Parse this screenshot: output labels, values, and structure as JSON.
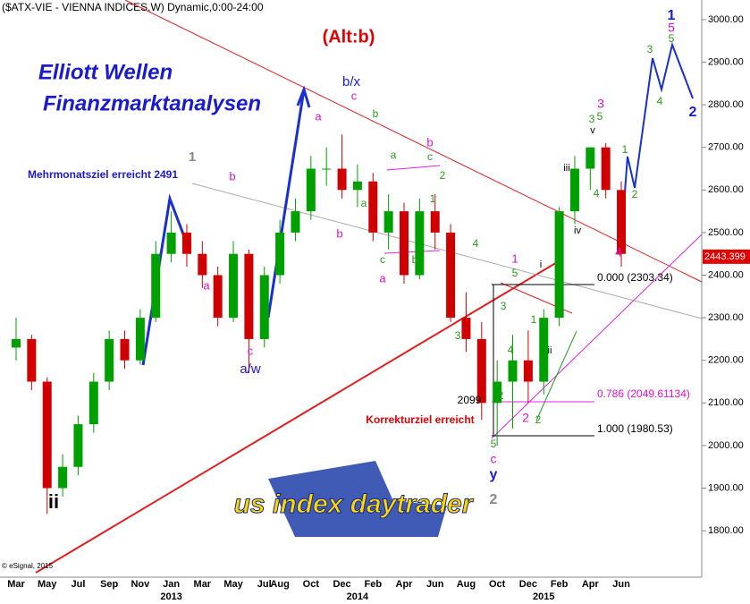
{
  "chart_data": {
    "type": "candlestick",
    "title": "($ATX-VIE - VIENNA INDICES,W) Dynamic,0:00-24:00",
    "categories": [
      "Mar",
      null,
      "May",
      null,
      "Jul",
      null,
      "Sep",
      null,
      "Nov",
      null,
      "Jan",
      null,
      "Mar",
      null,
      "May",
      null,
      "Jul",
      "Aug",
      null,
      "Oct",
      null,
      "Dec",
      null,
      "Feb",
      null,
      "Apr",
      null,
      "Jun",
      null,
      "Aug",
      null,
      "Oct",
      null,
      "Dec",
      null,
      "Feb",
      null,
      "Apr",
      null,
      "Jun",
      null,
      null,
      null,
      null
    ],
    "years": [
      null,
      null,
      null,
      null,
      null,
      null,
      null,
      null,
      null,
      null,
      "2013",
      null,
      null,
      null,
      null,
      null,
      null,
      null,
      null,
      null,
      null,
      null,
      "2014",
      null,
      null,
      null,
      null,
      null,
      null,
      null,
      null,
      null,
      null,
      null,
      "2015",
      null,
      null,
      null,
      null,
      null,
      null,
      null,
      null,
      null
    ],
    "open": [
      2230,
      2250,
      2150,
      1900,
      1950,
      2050,
      2150,
      2250,
      2200,
      2300,
      2450,
      2500,
      2450,
      2400,
      2300,
      2450,
      2250,
      2400,
      2500,
      2550,
      2650,
      2650,
      2600,
      2620,
      2500,
      2550,
      2400,
      2550,
      2500,
      2300,
      2250,
      2100,
      2150,
      2200,
      2150,
      2300,
      2550,
      2650,
      2700,
      2600,
      null,
      null,
      null,
      null
    ],
    "high": [
      2300,
      2260,
      2160,
      1980,
      2070,
      2170,
      2270,
      2270,
      2320,
      2480,
      2550,
      2520,
      2480,
      2420,
      2480,
      2460,
      2420,
      2530,
      2580,
      2680,
      2700,
      2730,
      2660,
      2640,
      2590,
      2570,
      2580,
      2590,
      2520,
      2360,
      2290,
      2200,
      2260,
      2270,
      2320,
      2560,
      2680,
      2700,
      2710,
      2620,
      null,
      null,
      null,
      null
    ],
    "low": [
      2200,
      2130,
      1840,
      1880,
      1930,
      2030,
      2130,
      2180,
      2190,
      2290,
      2430,
      2420,
      2370,
      2280,
      2290,
      2170,
      2230,
      2380,
      2480,
      2530,
      2610,
      2580,
      2560,
      2480,
      2460,
      2380,
      2390,
      2460,
      2290,
      2220,
      2060,
      2000,
      2040,
      2100,
      2120,
      2280,
      2520,
      2600,
      2580,
      2420,
      null,
      null,
      null,
      null
    ],
    "close": [
      2250,
      2150,
      1900,
      1950,
      2050,
      2150,
      2250,
      2200,
      2300,
      2450,
      2500,
      2450,
      2400,
      2300,
      2450,
      2250,
      2400,
      2500,
      2550,
      2650,
      2650,
      2600,
      2620,
      2500,
      2550,
      2400,
      2550,
      2500,
      2300,
      2250,
      2100,
      2150,
      2200,
      2150,
      2300,
      2550,
      2650,
      2700,
      2600,
      2450,
      null,
      null,
      null,
      null
    ],
    "up_color": "#00a000",
    "down_color": "#d00000",
    "ylim": [
      1691,
      3046
    ],
    "yticks": [
      {
        "value": 1800,
        "label": "1800.00"
      },
      {
        "value": 1900,
        "label": "1900.00"
      },
      {
        "value": 2000,
        "label": "2000.00"
      },
      {
        "value": 2100,
        "label": "2100.00"
      },
      {
        "value": 2200,
        "label": "2200.00"
      },
      {
        "value": 2300,
        "label": "2300.00"
      },
      {
        "value": 2400,
        "label": "2400.00"
      },
      {
        "value": 2500,
        "label": "2500.00"
      },
      {
        "value": 2600,
        "label": "2600.00"
      },
      {
        "value": 2700,
        "label": "2700.00"
      },
      {
        "value": 2800,
        "label": "2800.00"
      },
      {
        "value": 2900,
        "label": "2900.00"
      },
      {
        "value": 3000,
        "label": "3000.00"
      }
    ],
    "last_price": 2443.399,
    "logo": "us index daytrader",
    "annotations": [
      "(Alt:b)",
      "Elliott Wellen",
      "Finanzmarktanalysen",
      "Mehrmonatsziel erreicht 2491",
      "Korrekturziel erreicht",
      "2099",
      "0.000 (2303.34)",
      "0.786 (2049.61134)",
      "1.000 (1980.53)",
      "© eSignal, 2015",
      "1",
      "b",
      "a",
      "c",
      "a/w",
      "b/x",
      "c",
      "a",
      "b",
      "a",
      "b",
      "b",
      "c",
      "a",
      "2",
      "1",
      "c",
      "b",
      "a",
      "4",
      "3",
      "1",
      "5",
      "3",
      "4",
      "1",
      "2",
      "2",
      "2",
      "5",
      "c",
      "y",
      "2",
      "ii",
      "i",
      "iii",
      "iv",
      "v",
      "3",
      "5",
      "3",
      "4",
      "4",
      "1",
      "2",
      "3",
      "4",
      "5",
      "5",
      "1",
      "2",
      "ii"
    ]
  }
}
